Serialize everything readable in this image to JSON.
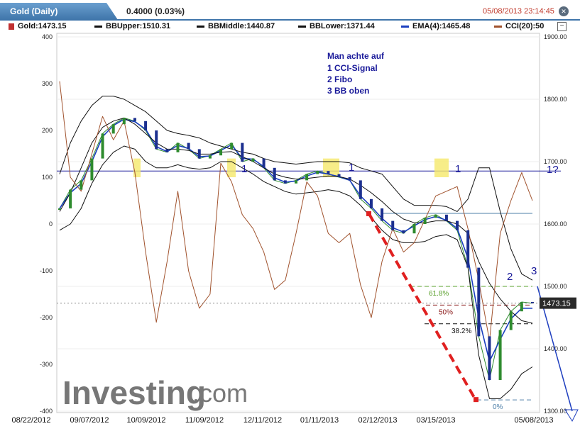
{
  "header": {
    "tab_title": "Gold (Daily)",
    "change": "0.4000 (0.03%)",
    "timestamp": "05/08/2013 23:14:45"
  },
  "legend": [
    {
      "text": "Gold:1473.15",
      "color": "#2e8b2e",
      "icon": "candle-icon"
    },
    {
      "text": "BBUpper:1510.31",
      "color": "#111111",
      "icon": "line-icon"
    },
    {
      "text": "BBMiddle:1440.87",
      "color": "#111111",
      "icon": "line-icon"
    },
    {
      "text": "BBLower:1371.44",
      "color": "#111111",
      "icon": "line-icon"
    },
    {
      "text": "EMA(4):1465.48",
      "color": "#1b3fbf",
      "icon": "line-icon"
    },
    {
      "text": "CCI(20):50",
      "color": "#a0522d",
      "icon": "line-icon"
    }
  ],
  "note": [
    "Man achte auf",
    "1 CCI-Signal",
    "2 Fibo",
    "3 BB oben"
  ],
  "watermark": {
    "part1": "Investing",
    "part2": ".com"
  },
  "chart_data": {
    "type": "line",
    "x_ticks": [
      "08/22/2012",
      "09/07/2012",
      "10/09/2012",
      "11/09/2012",
      "12/11/2012",
      "01/11/2013",
      "02/12/2013",
      "03/15/2013",
      "05/08/2013"
    ],
    "y_right": {
      "ticks": [
        "1900.00",
        "1800.00",
        "1700.00",
        "1600.00",
        "1500.00",
        "1400.00",
        "1300.00"
      ],
      "range": [
        1300,
        1900
      ]
    },
    "y_left": {
      "ticks": [
        "400",
        "300",
        "200",
        "100",
        "0",
        "-100",
        "-200",
        "-300",
        "-400"
      ],
      "range": [
        -400,
        400
      ]
    },
    "last_price": "1473.15",
    "series": [
      {
        "name": "Gold",
        "color": "#2e8b2e",
        "values": [
          1625,
          1655,
          1670,
          1705,
          1745,
          1760,
          1770,
          1765,
          1750,
          1720,
          1715,
          1730,
          1720,
          1705,
          1710,
          1720,
          1730,
          1700,
          1705,
          1690,
          1670,
          1665,
          1670,
          1680,
          1685,
          1680,
          1675,
          1670,
          1640,
          1625,
          1605,
          1590,
          1585,
          1600,
          1610,
          1615,
          1605,
          1590,
          1530,
          1420,
          1350,
          1430,
          1460,
          1475,
          1473
        ]
      },
      {
        "name": "EMA(4)",
        "color": "#1b3fbf",
        "values": [
          1625,
          1650,
          1665,
          1700,
          1740,
          1758,
          1768,
          1764,
          1752,
          1724,
          1716,
          1726,
          1721,
          1708,
          1709,
          1718,
          1727,
          1705,
          1704,
          1692,
          1674,
          1667,
          1669,
          1677,
          1683,
          1680,
          1676,
          1670,
          1645,
          1628,
          1609,
          1594,
          1587,
          1597,
          1607,
          1612,
          1606,
          1593,
          1545,
          1450,
          1380,
          1415,
          1448,
          1465,
          1465
        ]
      },
      {
        "name": "BBUpper",
        "color": "#111111",
        "values": [
          1680,
          1730,
          1765,
          1790,
          1805,
          1805,
          1800,
          1790,
          1780,
          1765,
          1750,
          1745,
          1742,
          1738,
          1730,
          1725,
          1720,
          1715,
          1712,
          1705,
          1700,
          1698,
          1696,
          1698,
          1700,
          1700,
          1700,
          1698,
          1690,
          1685,
          1680,
          1660,
          1640,
          1630,
          1630,
          1630,
          1628,
          1620,
          1640,
          1690,
          1690,
          1620,
          1560,
          1520,
          1510
        ]
      },
      {
        "name": "BBMiddle",
        "color": "#111111",
        "values": [
          1620,
          1650,
          1690,
          1730,
          1755,
          1765,
          1770,
          1760,
          1745,
          1730,
          1720,
          1720,
          1718,
          1712,
          1712,
          1715,
          1716,
          1708,
          1700,
          1690,
          1680,
          1675,
          1672,
          1673,
          1675,
          1677,
          1676,
          1672,
          1662,
          1650,
          1636,
          1620,
          1608,
          1602,
          1602,
          1605,
          1605,
          1600,
          1585,
          1540,
          1505,
          1480,
          1460,
          1445,
          1441
        ]
      },
      {
        "name": "BBLower",
        "color": "#111111",
        "values": [
          1590,
          1600,
          1625,
          1665,
          1695,
          1715,
          1725,
          1720,
          1700,
          1690,
          1690,
          1695,
          1690,
          1688,
          1690,
          1700,
          1700,
          1690,
          1680,
          1668,
          1660,
          1652,
          1648,
          1650,
          1652,
          1655,
          1652,
          1645,
          1630,
          1610,
          1590,
          1575,
          1570,
          1570,
          1572,
          1580,
          1583,
          1575,
          1530,
          1390,
          1320,
          1320,
          1335,
          1360,
          1371
        ]
      },
      {
        "name": "CCI(20)",
        "color": "#a0522d",
        "values": [
          305,
          100,
          70,
          150,
          230,
          180,
          220,
          110,
          -60,
          -210,
          -80,
          70,
          -100,
          -180,
          -150,
          130,
          90,
          20,
          -10,
          -60,
          -140,
          -120,
          -20,
          90,
          60,
          -20,
          -40,
          -20,
          -130,
          -200,
          -80,
          -10,
          -60,
          -40,
          10,
          60,
          70,
          80,
          -10,
          -120,
          -250,
          -20,
          50,
          110,
          50
        ]
      }
    ],
    "horizontal_levels": [
      {
        "label": "1",
        "value": 1685,
        "color": "#1a1a9a"
      },
      {
        "label": "",
        "value": 1617,
        "color": "#4d7fa8"
      }
    ],
    "fibonacci": [
      {
        "label": "61.8%",
        "value": 1500,
        "color": "#5aa02c"
      },
      {
        "label": "50%",
        "value": 1470,
        "color": "#8b1a1a"
      },
      {
        "label": "38.2%",
        "value": 1440,
        "color": "#111111"
      },
      {
        "label": "0%",
        "value": 1318,
        "color": "#4d7fa8"
      }
    ],
    "annotations": [
      "1",
      "1",
      "1",
      "1?",
      "2",
      "3"
    ]
  }
}
